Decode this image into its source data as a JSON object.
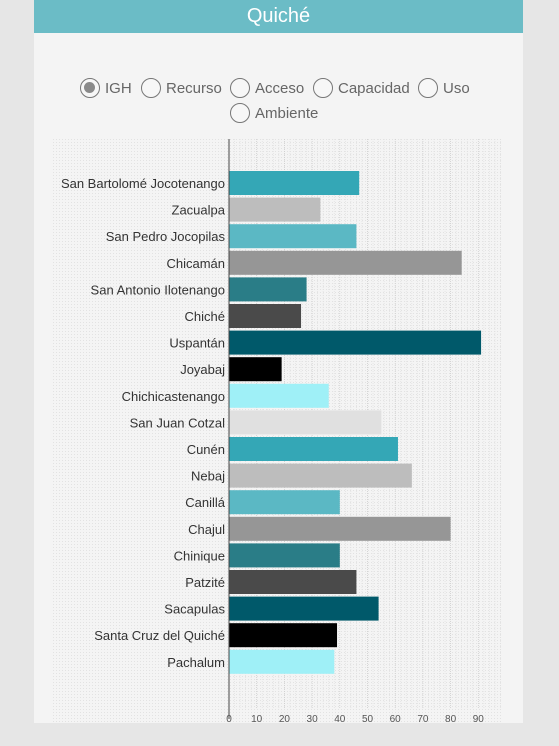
{
  "title": "Quiché",
  "radio_options": [
    {
      "label": "IGH",
      "checked": true
    },
    {
      "label": "Recurso",
      "checked": false
    },
    {
      "label": "Acceso",
      "checked": false
    },
    {
      "label": "Capacidad",
      "checked": false
    },
    {
      "label": "Uso",
      "checked": false
    },
    {
      "label": "Ambiente",
      "checked": false
    }
  ],
  "chart_data": {
    "type": "bar",
    "orientation": "horizontal",
    "categories": [
      "San Bartolomé Jocotenango",
      "Zacualpa",
      "San Pedro Jocopilas",
      "Chicamán",
      "San Antonio Ilotenango",
      "Chiché",
      "Uspantán",
      "Joyabaj",
      "Chichicastenango",
      "San Juan Cotzal",
      "Cunén",
      "Nebaj",
      "Canillá",
      "Chajul",
      "Chinique",
      "Patzité",
      "Sacapulas",
      "Santa Cruz del Quiché",
      "Pachalum"
    ],
    "values": [
      47,
      33,
      46,
      84,
      28,
      26,
      91,
      19,
      36,
      55,
      61,
      66,
      40,
      80,
      40,
      46,
      54,
      39,
      38
    ],
    "bar_colors": [
      "#34a7b6",
      "#bdbdbd",
      "#5bb8c4",
      "#969696",
      "#2a7d87",
      "#4a4a4a",
      "#00596a",
      "#000000",
      "#9ff0f7",
      "#e0e0e0",
      "#34a7b6",
      "#bdbdbd",
      "#5bb8c4",
      "#969696",
      "#2a7d87",
      "#4a4a4a",
      "#00596a",
      "#000000",
      "#9ff0f7"
    ],
    "xticks": [
      0,
      10,
      20,
      30,
      40,
      50,
      60,
      70,
      80,
      90
    ],
    "xlim": [
      0,
      100
    ],
    "grid": true,
    "title": "",
    "xlabel": "",
    "ylabel": ""
  }
}
